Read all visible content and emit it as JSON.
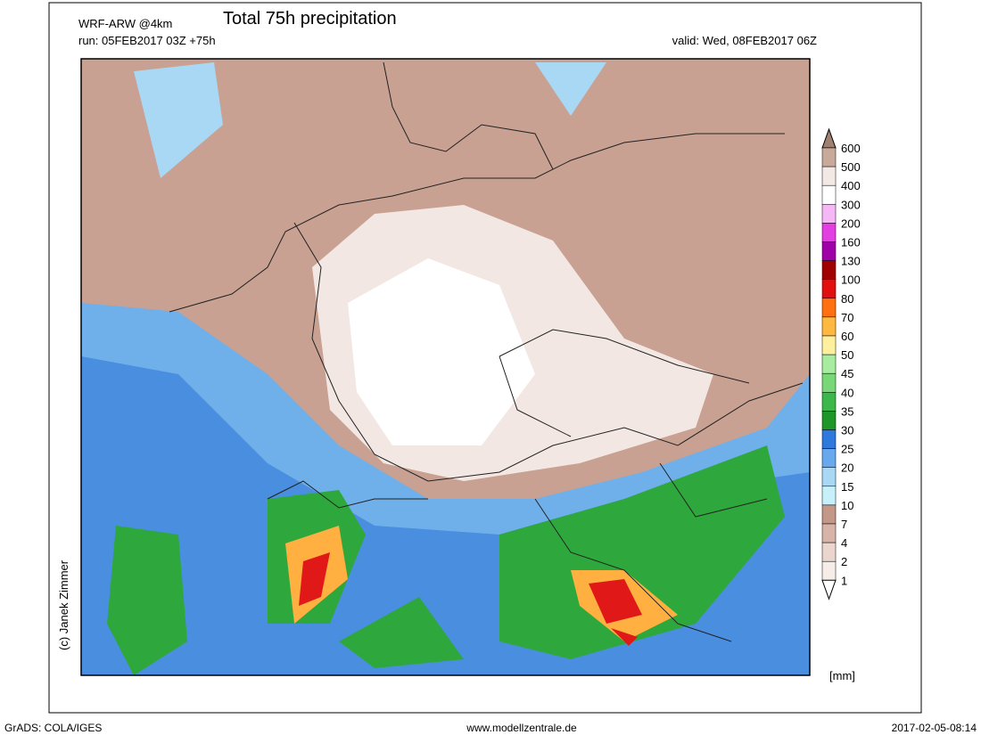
{
  "header": {
    "model": "WRF-ARW @4km",
    "title": "Total 75h precipitation",
    "run": "run: 05FEB2017 03Z +75h",
    "valid": "valid: Wed, 08FEB2017 06Z"
  },
  "credit": "(c) Janek Zimmer",
  "legend": {
    "unit": "[mm]",
    "levels": [
      600,
      500,
      400,
      300,
      200,
      160,
      130,
      100,
      80,
      70,
      60,
      50,
      45,
      40,
      35,
      30,
      25,
      20,
      15,
      10,
      7,
      4,
      2,
      1
    ],
    "colors": [
      "#a08070",
      "#c8aa9c",
      "#f2e9e5",
      "#ffffff",
      "#f4b8f4",
      "#e23ee2",
      "#a000a8",
      "#a00000",
      "#e01010",
      "#ff7010",
      "#ffb840",
      "#fff0a0",
      "#a8eca0",
      "#78d878",
      "#3cb84a",
      "#1e9628",
      "#2f78dc",
      "#68a8ec",
      "#a8d8f4",
      "#c8f0fa",
      "#c49888",
      "#d8b4a8",
      "#ead6ce",
      "#f6ede9",
      "#ffffff"
    ]
  },
  "footer": {
    "left": "GrADS: COLA/IGES",
    "center": "www.modellzentrale.de",
    "right": "2017-02-05-08:14"
  }
}
